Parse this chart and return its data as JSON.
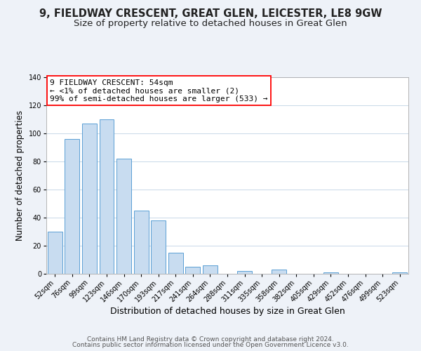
{
  "title": "9, FIELDWAY CRESCENT, GREAT GLEN, LEICESTER, LE8 9GW",
  "subtitle": "Size of property relative to detached houses in Great Glen",
  "xlabel": "Distribution of detached houses by size in Great Glen",
  "ylabel": "Number of detached properties",
  "bar_color": "#c8dcf0",
  "bar_edge_color": "#5a9fd4",
  "categories": [
    "52sqm",
    "76sqm",
    "99sqm",
    "123sqm",
    "146sqm",
    "170sqm",
    "193sqm",
    "217sqm",
    "241sqm",
    "264sqm",
    "288sqm",
    "311sqm",
    "335sqm",
    "358sqm",
    "382sqm",
    "405sqm",
    "429sqm",
    "452sqm",
    "476sqm",
    "499sqm",
    "523sqm"
  ],
  "values": [
    30,
    96,
    107,
    110,
    82,
    45,
    38,
    15,
    5,
    6,
    0,
    2,
    0,
    3,
    0,
    0,
    1,
    0,
    0,
    0,
    1
  ],
  "ylim": [
    0,
    140
  ],
  "yticks": [
    0,
    20,
    40,
    60,
    80,
    100,
    120,
    140
  ],
  "annotation_box_text": "9 FIELDWAY CRESCENT: 54sqm\n← <1% of detached houses are smaller (2)\n99% of semi-detached houses are larger (533) →",
  "footer_line1": "Contains HM Land Registry data © Crown copyright and database right 2024.",
  "footer_line2": "Contains public sector information licensed under the Open Government Licence v3.0.",
  "bg_color": "#eef2f8",
  "plot_bg_color": "#ffffff",
  "title_fontsize": 10.5,
  "subtitle_fontsize": 9.5,
  "xlabel_fontsize": 9,
  "ylabel_fontsize": 8.5,
  "tick_fontsize": 7,
  "annotation_fontsize": 8,
  "footer_fontsize": 6.5
}
